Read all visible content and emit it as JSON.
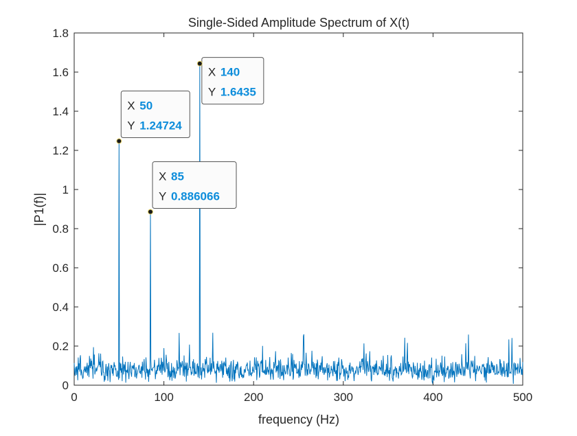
{
  "chart_data": {
    "type": "line",
    "title": "Single-Sided Amplitude Spectrum of X(t)",
    "xlabel": "frequency (Hz)",
    "ylabel": "|P1(f)|",
    "xlim": [
      0,
      500
    ],
    "ylim": [
      0,
      1.8
    ],
    "xticks": [
      0,
      100,
      200,
      300,
      400,
      500
    ],
    "yticks": [
      0,
      0.2,
      0.4,
      0.6,
      0.8,
      1,
      1.2,
      1.4,
      1.6,
      1.8
    ],
    "xtick_labels": [
      "0",
      "100",
      "200",
      "300",
      "400",
      "500"
    ],
    "ytick_labels": [
      "0",
      "0.2",
      "0.4",
      "0.6",
      "0.8",
      "1",
      "1.2",
      "1.4",
      "1.6",
      "1.8"
    ],
    "grid": false,
    "line_color": "#0072bd",
    "frequency_step": 0.5,
    "noise": {
      "baseline": 0.08,
      "spread": 0.055,
      "max_spike": 0.27
    },
    "peaks": [
      {
        "x": 50,
        "y": 1.24724
      },
      {
        "x": 85,
        "y": 0.886066
      },
      {
        "x": 140,
        "y": 1.6435
      }
    ],
    "datatips": [
      {
        "x_label": "X",
        "x_value": "50",
        "y_label": "Y",
        "y_value": "1.24724",
        "x": 50,
        "y": 1.24724
      },
      {
        "x_label": "X",
        "x_value": "85",
        "y_label": "Y",
        "y_value": "0.886066",
        "x": 85,
        "y": 0.886066
      },
      {
        "x_label": "X",
        "x_value": "140",
        "y_label": "Y",
        "y_value": "1.6435",
        "x": 140,
        "y": 1.6435
      }
    ],
    "datatip_value_color": "#0d8ddb"
  }
}
